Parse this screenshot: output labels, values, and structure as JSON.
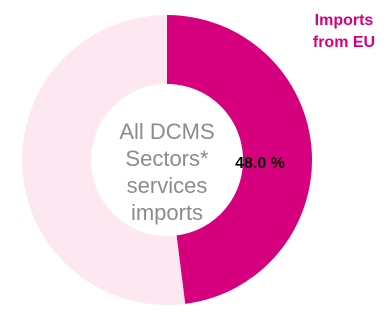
{
  "chart_data": {
    "type": "pie",
    "variant": "donut",
    "center_label_lines": [
      "All DCMS",
      "Sectors*",
      "services",
      "imports"
    ],
    "slices": [
      {
        "name": "Imports from EU",
        "value": 48.0,
        "label": "48.0 %",
        "color": "#D6007F"
      },
      {
        "name": "",
        "value": 52.0,
        "label": "",
        "color": "#FDE7F1"
      }
    ],
    "legend": {
      "lines": [
        "Imports",
        "from EU"
      ],
      "placement": "top-right",
      "color": "#D6007F"
    },
    "center_text_color": "#8C8C8C",
    "slice_label_color": "#000000"
  }
}
